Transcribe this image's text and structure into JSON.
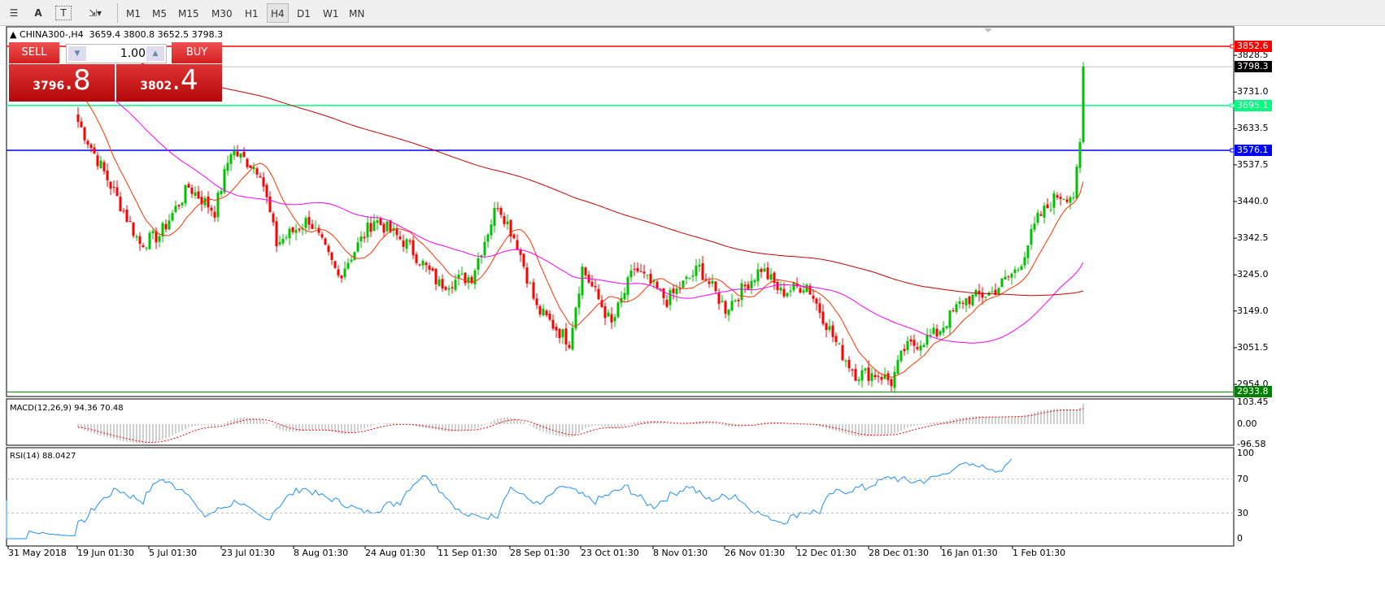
{
  "toolbar": {
    "tools": [
      "horizontal-lines-icon",
      "text-icon",
      "text-label-icon",
      "arrows-icon"
    ],
    "timeframes": [
      "M1",
      "M5",
      "M15",
      "M30",
      "H1",
      "H4",
      "D1",
      "W1",
      "MN"
    ],
    "active": "H4"
  },
  "chart": {
    "title": "CHINA300-,H4",
    "ohlc": "3659.4 3800.8 3652.5 3798.3"
  },
  "trade_panel": {
    "sell_label": "SELL",
    "buy_label": "BUY",
    "volume": "1.00",
    "sell_main": "3796",
    "sell_frac": ".8",
    "buy_main": "3802",
    "buy_frac": ".4"
  },
  "price_axis": {
    "ticks": [
      "3828.5",
      "3731.0",
      "3633.5",
      "3537.5",
      "3440.0",
      "3342.5",
      "3245.0",
      "3149.0",
      "3051.5",
      "2954.0"
    ],
    "tags": [
      {
        "value": "3852.6",
        "color": "#ff0000"
      },
      {
        "value": "3798.3",
        "color": "#000000"
      },
      {
        "value": "3695.1",
        "color": "#00ff7f"
      },
      {
        "value": "3576.1",
        "color": "#0000ff"
      },
      {
        "value": "2933.8",
        "color": "#008000"
      }
    ]
  },
  "hlines": [
    {
      "price": 3852.6,
      "color": "#ff0000"
    },
    {
      "price": 3695.1,
      "color": "#00ff7f"
    },
    {
      "price": 3576.1,
      "color": "#0000ff"
    }
  ],
  "macd": {
    "label": "MACD(12,26,9) 94.36 70.48",
    "ticks": [
      "103.45",
      "0.00",
      "-96.58"
    ]
  },
  "rsi": {
    "label": "RSI(14) 88.0427",
    "ticks": [
      "100",
      "70",
      "30",
      "0"
    ]
  },
  "time_axis": [
    "31 May 2018",
    "19 Jun 01:30",
    "5 Jul 01:30",
    "23 Jul 01:30",
    "8 Aug 01:30",
    "24 Aug 01:30",
    "11 Sep 01:30",
    "28 Sep 01:30",
    "23 Oct 01:30",
    "8 Nov 01:30",
    "26 Nov 01:30",
    "12 Dec 01:30",
    "28 Dec 01:30",
    "16 Jan 01:30",
    "1 Feb 01:30"
  ],
  "colors": {
    "bull": "#00c000",
    "bear": "#ff0000",
    "ma_fast": "#ff3300",
    "ma_mid": "#ff00ff",
    "ma_slow": "#cc0000",
    "rsi": "#1e90ff"
  },
  "chart_data": {
    "type": "candlestick",
    "ylim": [
      2933.8,
      3852.6
    ],
    "price_path": [
      [
        0,
        3652
      ],
      [
        9,
        3500
      ],
      [
        19,
        3328
      ],
      [
        25,
        3350
      ],
      [
        34,
        3479
      ],
      [
        42,
        3414
      ],
      [
        47,
        3576
      ],
      [
        56,
        3522
      ],
      [
        61,
        3328
      ],
      [
        71,
        3393
      ],
      [
        80,
        3241
      ],
      [
        91,
        3393
      ],
      [
        101,
        3328
      ],
      [
        111,
        3220
      ],
      [
        121,
        3241
      ],
      [
        129,
        3436
      ],
      [
        135,
        3328
      ],
      [
        141,
        3155
      ],
      [
        151,
        3068
      ],
      [
        155,
        3263
      ],
      [
        164,
        3112
      ],
      [
        171,
        3263
      ],
      [
        181,
        3177
      ],
      [
        191,
        3263
      ],
      [
        199,
        3155
      ],
      [
        210,
        3263
      ],
      [
        216,
        3198
      ],
      [
        224,
        3220
      ],
      [
        234,
        3047
      ],
      [
        239,
        2982
      ],
      [
        246,
        2982
      ],
      [
        250,
        2960
      ],
      [
        254,
        3047
      ],
      [
        264,
        3090
      ],
      [
        272,
        3177
      ],
      [
        281,
        3198
      ],
      [
        289,
        3263
      ],
      [
        295,
        3393
      ],
      [
        301,
        3457
      ],
      [
        306,
        3457
      ],
      [
        307,
        3533
      ],
      [
        308,
        3598
      ],
      [
        309,
        3798
      ]
    ]
  }
}
